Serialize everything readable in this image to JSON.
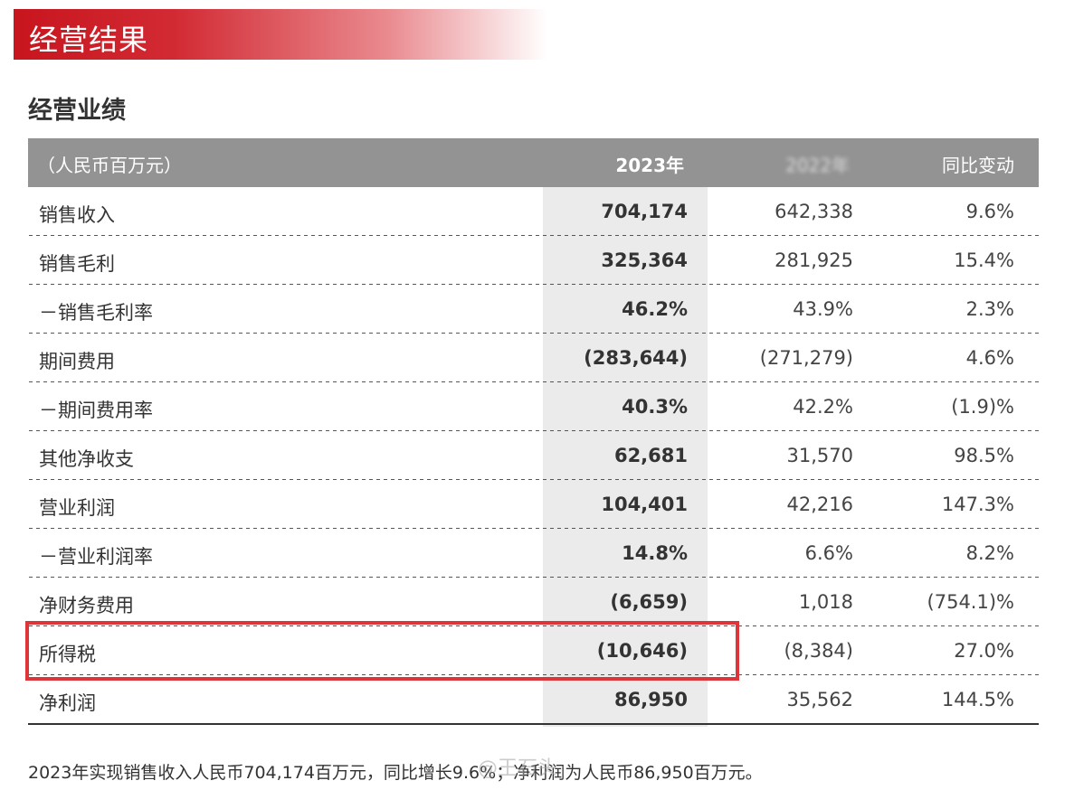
{
  "banner": {
    "title": "经营结果"
  },
  "section": {
    "title": "经营业绩"
  },
  "table": {
    "headers": {
      "label": "（人民币百万元）",
      "current": "2023年",
      "previous": "2022年",
      "change": "同比变动"
    },
    "rows": [
      {
        "label": "销售收入",
        "current": "704,174",
        "previous": "642,338",
        "change": "9.6%"
      },
      {
        "label": "销售毛利",
        "current": "325,364",
        "previous": "281,925",
        "change": "15.4%"
      },
      {
        "label": "－销售毛利率",
        "current": "46.2%",
        "previous": "43.9%",
        "change": "2.3%"
      },
      {
        "label": "期间费用",
        "current": "(283,644)",
        "previous": "(271,279)",
        "change": "4.6%"
      },
      {
        "label": "－期间费用率",
        "current": "40.3%",
        "previous": "42.2%",
        "change": "(1.9)%"
      },
      {
        "label": "其他净收支",
        "current": "62,681",
        "previous": "31,570",
        "change": "98.5%"
      },
      {
        "label": "营业利润",
        "current": "104,401",
        "previous": "42,216",
        "change": "147.3%"
      },
      {
        "label": "－营业利润率",
        "current": "14.8%",
        "previous": "6.6%",
        "change": "8.2%"
      },
      {
        "label": "净财务费用",
        "current": "(6,659)",
        "previous": "1,018",
        "change": "(754.1)%"
      },
      {
        "label": "所得税",
        "current": "(10,646)",
        "previous": "(8,384)",
        "change": "27.0%"
      },
      {
        "label": "净利润",
        "current": "86,950",
        "previous": "35,562",
        "change": "144.5%"
      }
    ]
  },
  "footnote": "2023年实现销售收入人民币704,174百万元，同比增长9.6%；净利润为人民币86,950百万元。",
  "watermark": "@王石头",
  "colors": {
    "banner": "#c8151e",
    "header_bg": "#939393",
    "highlight": "#e0343b",
    "shade": "#ebebeb"
  }
}
